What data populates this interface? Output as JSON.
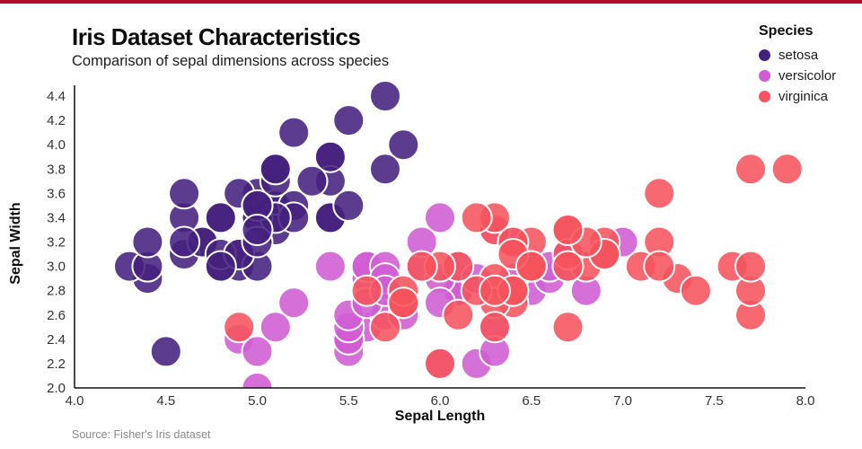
{
  "accent_color": "#b00d2d",
  "header": {
    "title": "Iris Dataset Characteristics",
    "subtitle": "Comparison of sepal dimensions across species"
  },
  "legend": {
    "title": "Species",
    "items": [
      {
        "label": "setosa",
        "color": "#45217e"
      },
      {
        "label": "versicolor",
        "color": "#d05cd4"
      },
      {
        "label": "virginica",
        "color": "#f6535c"
      }
    ]
  },
  "footer": {
    "source": "Source: Fisher's Iris dataset"
  },
  "chart_data": {
    "type": "scatter",
    "title": "Iris Dataset Characteristics",
    "subtitle": "Comparison of sepal dimensions across species",
    "xlabel": "Sepal Length",
    "ylabel": "Sepal Width",
    "xlim": [
      4.0,
      8.0
    ],
    "ylim": [
      2.0,
      4.4
    ],
    "xticks": [
      4.0,
      4.5,
      5.0,
      5.5,
      6.0,
      6.5,
      7.0,
      7.5,
      8.0
    ],
    "yticks": [
      2.0,
      2.2,
      2.4,
      2.6,
      2.8,
      3.0,
      3.2,
      3.4,
      3.6,
      3.8,
      4.0,
      4.2,
      4.4
    ],
    "grid": false,
    "legend_position": "top-right",
    "marker": {
      "radius": 17,
      "stroke": "#ffffff",
      "stroke_width": 2,
      "fill_opacity": 0.88
    },
    "series": [
      {
        "name": "setosa",
        "color": "#45217e",
        "points": [
          [
            5.1,
            3.5
          ],
          [
            4.9,
            3.0
          ],
          [
            4.7,
            3.2
          ],
          [
            4.6,
            3.1
          ],
          [
            5.0,
            3.6
          ],
          [
            5.4,
            3.9
          ],
          [
            4.6,
            3.4
          ],
          [
            5.0,
            3.4
          ],
          [
            4.4,
            2.9
          ],
          [
            4.9,
            3.1
          ],
          [
            5.4,
            3.7
          ],
          [
            4.8,
            3.4
          ],
          [
            4.8,
            3.0
          ],
          [
            4.3,
            3.0
          ],
          [
            5.8,
            4.0
          ],
          [
            5.7,
            4.4
          ],
          [
            5.4,
            3.9
          ],
          [
            5.1,
            3.5
          ],
          [
            5.7,
            3.8
          ],
          [
            5.1,
            3.8
          ],
          [
            5.4,
            3.4
          ],
          [
            5.1,
            3.7
          ],
          [
            4.6,
            3.6
          ],
          [
            5.1,
            3.3
          ],
          [
            4.8,
            3.4
          ],
          [
            5.0,
            3.0
          ],
          [
            5.0,
            3.4
          ],
          [
            5.2,
            3.5
          ],
          [
            5.2,
            3.4
          ],
          [
            4.7,
            3.2
          ],
          [
            4.8,
            3.1
          ],
          [
            5.4,
            3.4
          ],
          [
            5.2,
            4.1
          ],
          [
            5.5,
            4.2
          ],
          [
            4.9,
            3.1
          ],
          [
            5.0,
            3.2
          ],
          [
            5.5,
            3.5
          ],
          [
            4.9,
            3.6
          ],
          [
            4.4,
            3.0
          ],
          [
            5.1,
            3.4
          ],
          [
            5.0,
            3.5
          ],
          [
            4.5,
            2.3
          ],
          [
            4.4,
            3.2
          ],
          [
            5.0,
            3.5
          ],
          [
            5.1,
            3.8
          ],
          [
            4.8,
            3.0
          ],
          [
            5.1,
            3.8
          ],
          [
            4.6,
            3.2
          ],
          [
            5.3,
            3.7
          ],
          [
            5.0,
            3.3
          ]
        ]
      },
      {
        "name": "versicolor",
        "color": "#d05cd4",
        "points": [
          [
            7.0,
            3.2
          ],
          [
            6.4,
            3.2
          ],
          [
            6.9,
            3.1
          ],
          [
            5.5,
            2.3
          ],
          [
            6.5,
            2.8
          ],
          [
            5.7,
            2.8
          ],
          [
            6.3,
            3.3
          ],
          [
            4.9,
            2.4
          ],
          [
            6.6,
            2.9
          ],
          [
            5.2,
            2.7
          ],
          [
            5.0,
            2.0
          ],
          [
            5.9,
            3.0
          ],
          [
            6.0,
            2.2
          ],
          [
            6.1,
            2.9
          ],
          [
            5.6,
            2.9
          ],
          [
            6.7,
            3.1
          ],
          [
            5.6,
            3.0
          ],
          [
            5.8,
            2.7
          ],
          [
            6.2,
            2.2
          ],
          [
            5.6,
            2.5
          ],
          [
            5.9,
            3.2
          ],
          [
            6.1,
            2.8
          ],
          [
            6.3,
            2.5
          ],
          [
            6.1,
            2.8
          ],
          [
            6.4,
            2.9
          ],
          [
            6.6,
            3.0
          ],
          [
            6.8,
            2.8
          ],
          [
            6.7,
            3.0
          ],
          [
            6.0,
            2.9
          ],
          [
            5.7,
            2.6
          ],
          [
            5.5,
            2.4
          ],
          [
            5.5,
            2.4
          ],
          [
            5.8,
            2.7
          ],
          [
            6.0,
            2.7
          ],
          [
            5.4,
            3.0
          ],
          [
            6.0,
            3.4
          ],
          [
            6.7,
            3.1
          ],
          [
            6.3,
            2.3
          ],
          [
            5.6,
            3.0
          ],
          [
            5.5,
            2.5
          ],
          [
            5.5,
            2.6
          ],
          [
            6.1,
            3.0
          ],
          [
            5.8,
            2.6
          ],
          [
            5.0,
            2.3
          ],
          [
            5.6,
            2.7
          ],
          [
            5.7,
            3.0
          ],
          [
            5.7,
            2.9
          ],
          [
            6.2,
            2.9
          ],
          [
            5.1,
            2.5
          ],
          [
            5.7,
            2.8
          ]
        ]
      },
      {
        "name": "virginica",
        "color": "#f6535c",
        "points": [
          [
            6.3,
            3.3
          ],
          [
            5.8,
            2.7
          ],
          [
            7.1,
            3.0
          ],
          [
            6.3,
            2.9
          ],
          [
            6.5,
            3.0
          ],
          [
            7.6,
            3.0
          ],
          [
            4.9,
            2.5
          ],
          [
            7.3,
            2.9
          ],
          [
            6.7,
            2.5
          ],
          [
            7.2,
            3.6
          ],
          [
            6.5,
            3.2
          ],
          [
            6.4,
            2.7
          ],
          [
            6.8,
            3.0
          ],
          [
            5.7,
            2.5
          ],
          [
            5.8,
            2.8
          ],
          [
            6.4,
            3.2
          ],
          [
            6.5,
            3.0
          ],
          [
            7.7,
            3.8
          ],
          [
            7.7,
            2.6
          ],
          [
            6.0,
            2.2
          ],
          [
            6.9,
            3.2
          ],
          [
            5.6,
            2.8
          ],
          [
            7.7,
            2.8
          ],
          [
            6.3,
            2.7
          ],
          [
            6.7,
            3.3
          ],
          [
            7.2,
            3.2
          ],
          [
            6.2,
            2.8
          ],
          [
            6.1,
            3.0
          ],
          [
            6.4,
            2.8
          ],
          [
            7.2,
            3.0
          ],
          [
            7.4,
            2.8
          ],
          [
            7.9,
            3.8
          ],
          [
            6.4,
            2.8
          ],
          [
            6.3,
            2.8
          ],
          [
            6.1,
            2.6
          ],
          [
            7.7,
            3.0
          ],
          [
            6.3,
            3.4
          ],
          [
            6.4,
            3.1
          ],
          [
            6.0,
            3.0
          ],
          [
            6.9,
            3.1
          ],
          [
            6.7,
            3.1
          ],
          [
            6.9,
            3.1
          ],
          [
            5.8,
            2.7
          ],
          [
            6.8,
            3.2
          ],
          [
            6.7,
            3.3
          ],
          [
            6.7,
            3.0
          ],
          [
            6.3,
            2.5
          ],
          [
            6.5,
            3.0
          ],
          [
            6.2,
            3.4
          ],
          [
            5.9,
            3.0
          ]
        ]
      }
    ]
  }
}
